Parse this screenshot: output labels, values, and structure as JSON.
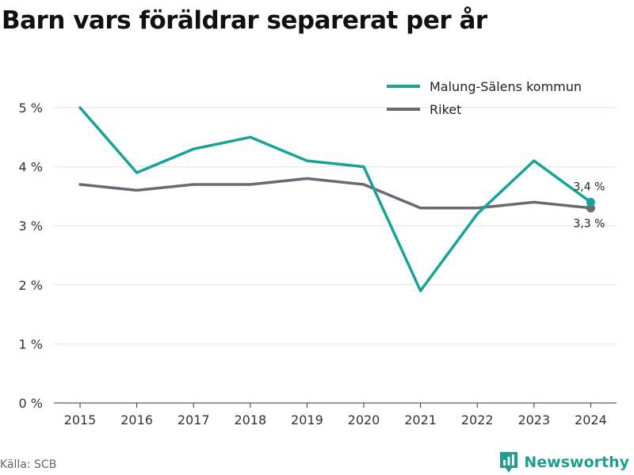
{
  "title": "Barn vars föräldrar separerat per år",
  "source": "Källa: SCB",
  "brand": {
    "name": "Newsworthy",
    "icon": "newsworthy-logo-icon",
    "color": "#1e9e8f"
  },
  "chart_data": {
    "type": "line",
    "title": "Barn vars föräldrar separerat per år",
    "xlabel": "",
    "ylabel": "",
    "x": [
      "2015",
      "2016",
      "2017",
      "2018",
      "2019",
      "2020",
      "2021",
      "2022",
      "2023",
      "2024"
    ],
    "ylim": [
      0,
      5
    ],
    "yticks": [
      0,
      1,
      2,
      3,
      4,
      5
    ],
    "ytick_labels": [
      "0 %",
      "1 %",
      "2 %",
      "3 %",
      "4 %",
      "5 %"
    ],
    "grid": "horizontal",
    "legend_position": "top-right",
    "series": [
      {
        "name": "Malung-Sälens kommun",
        "color": "#17a398",
        "values": [
          5.0,
          3.9,
          4.3,
          4.5,
          4.1,
          4.0,
          1.9,
          3.2,
          4.1,
          3.4
        ],
        "end_label": "3,4 %"
      },
      {
        "name": "Riket",
        "color": "#6b6a72",
        "values": [
          3.7,
          3.6,
          3.7,
          3.7,
          3.8,
          3.7,
          3.3,
          3.3,
          3.4,
          3.3
        ],
        "end_label": "3,3 %"
      }
    ]
  }
}
